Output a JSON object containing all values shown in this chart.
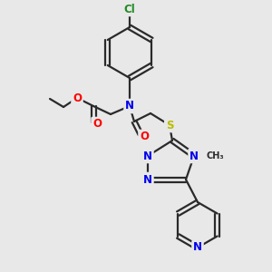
{
  "bg_color": "#e8e8e8",
  "bond_color": "#2a2a2a",
  "bond_width": 1.6,
  "atom_colors": {
    "N": "#0000EE",
    "O": "#FF0000",
    "S": "#BBBB00",
    "Cl": "#228B22",
    "C": "#2a2a2a"
  },
  "font_size_atom": 8.5,
  "font_size_methyl": 7.0
}
